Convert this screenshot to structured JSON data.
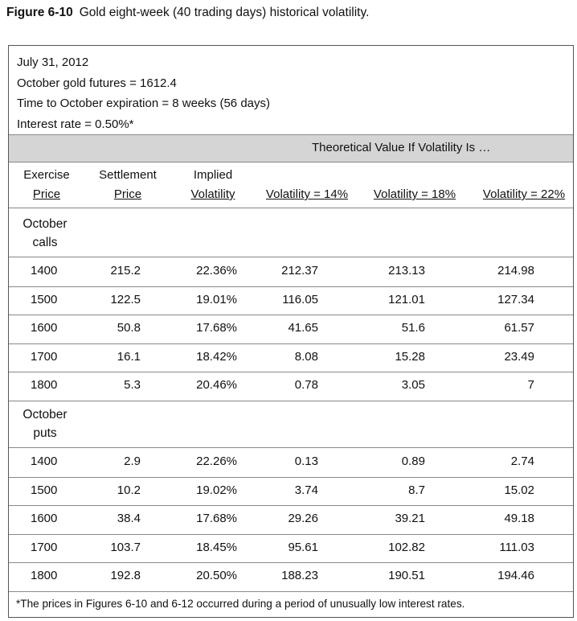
{
  "caption": {
    "figure": "Figure 6-10",
    "title": "Gold eight-week (40 trading days) historical volatility."
  },
  "info": {
    "date": "July 31, 2012",
    "futures": "October gold futures = 1612.4",
    "expiration": "Time to October expiration = 8 weeks (56 days)",
    "interest": "Interest rate = 0.50%*"
  },
  "band_label": "Theoretical Value If Volatility Is …",
  "headers": {
    "exercise_1": "Exercise",
    "exercise_2": "Price",
    "settlement_1": "Settlement",
    "settlement_2": "Price",
    "implied_1": "Implied",
    "implied_2": "Volatility",
    "vol14": "Volatility = 14%",
    "vol18": "Volatility = 18%",
    "vol22": "Volatility = 22%"
  },
  "calls": {
    "label_1": "October",
    "label_2": "calls",
    "rows": [
      [
        "1400",
        "215.2",
        "22.36%",
        "212.37",
        "213.13",
        "214.98"
      ],
      [
        "1500",
        "122.5",
        "19.01%",
        "116.05",
        "121.01",
        "127.34"
      ],
      [
        "1600",
        "50.8",
        "17.68%",
        "41.65",
        "51.6",
        "61.57"
      ],
      [
        "1700",
        "16.1",
        "18.42%",
        "8.08",
        "15.28",
        "23.49"
      ],
      [
        "1800",
        "5.3",
        "20.46%",
        "0.78",
        "3.05",
        "7"
      ]
    ]
  },
  "puts": {
    "label_1": "October",
    "label_2": "puts",
    "rows": [
      [
        "1400",
        "2.9",
        "22.26%",
        "0.13",
        "0.89",
        "2.74"
      ],
      [
        "1500",
        "10.2",
        "19.02%",
        "3.74",
        "8.7",
        "15.02"
      ],
      [
        "1600",
        "38.4",
        "17.68%",
        "29.26",
        "39.21",
        "49.18"
      ],
      [
        "1700",
        "103.7",
        "18.45%",
        "95.61",
        "102.82",
        "111.03"
      ],
      [
        "1800",
        "192.8",
        "20.50%",
        "188.23",
        "190.51",
        "194.46"
      ]
    ]
  },
  "footnote": "*The prices in Figures 6-10 and 6-12 occurred during a period of unusually low interest rates."
}
